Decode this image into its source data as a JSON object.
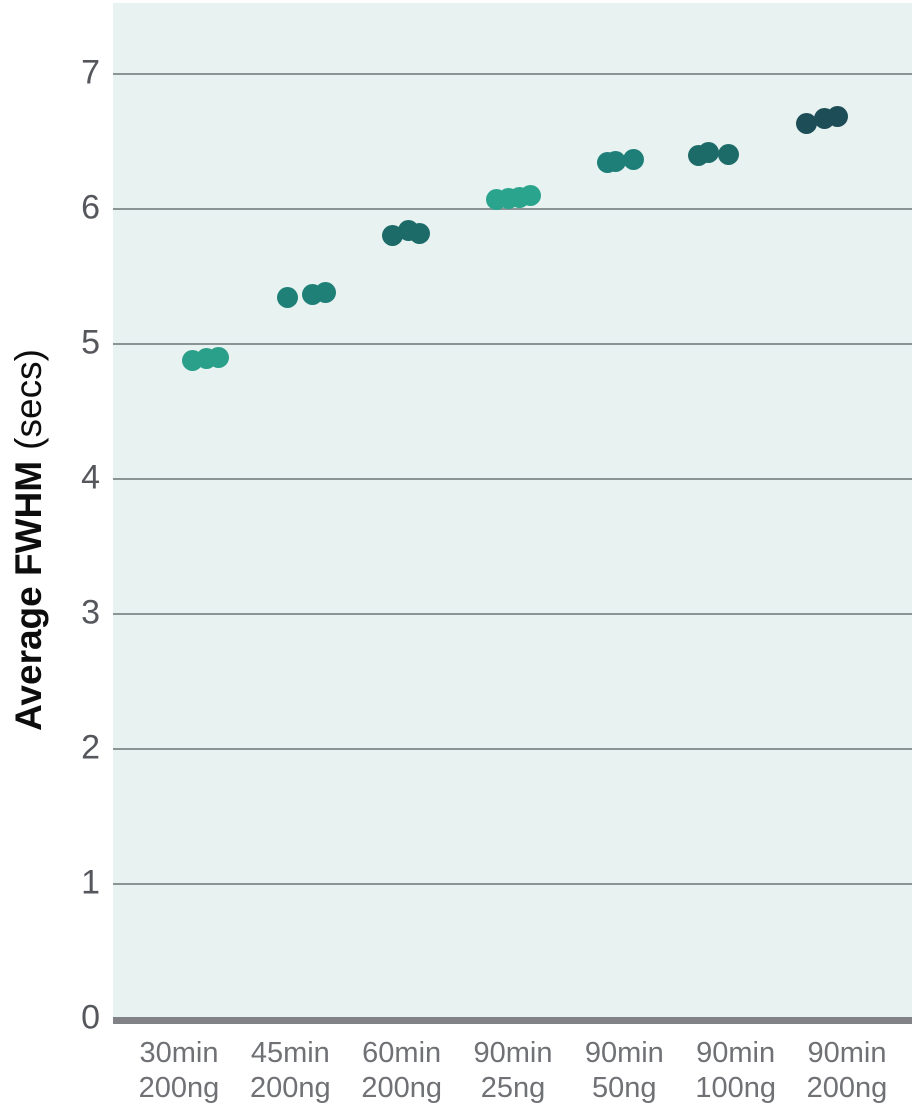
{
  "chart_data": {
    "type": "scatter",
    "subtype": "strip-plot",
    "title": "",
    "ylabel": "Average FWHM (secs)",
    "ylabel_bold": "Average FWHM",
    "ylabel_unit": "(secs)",
    "ylim": [
      0,
      7.52
    ],
    "yticks": [
      0,
      1,
      2,
      3,
      4,
      5,
      6,
      7
    ],
    "grid": "horizontal",
    "legend": "none",
    "categories": [
      {
        "line1": "30min",
        "line2": "200ng"
      },
      {
        "line1": "45min",
        "line2": "200ng"
      },
      {
        "line1": "60min",
        "line2": "200ng"
      },
      {
        "line1": "90min",
        "line2": "25ng"
      },
      {
        "line1": "90min",
        "line2": "50ng"
      },
      {
        "line1": "90min",
        "line2": "100ng"
      },
      {
        "line1": "90min",
        "line2": "200ng"
      }
    ],
    "series": [
      {
        "name": "30min 200ng",
        "color": "#2a9f8a",
        "points": [
          {
            "y": 4.87,
            "dx": 13
          },
          {
            "y": 4.885,
            "dx": 27
          },
          {
            "y": 4.89,
            "dx": 39
          }
        ]
      },
      {
        "name": "45min 200ng",
        "color": "#1f8078",
        "points": [
          {
            "y": 5.34,
            "dx": -3
          },
          {
            "y": 5.36,
            "dx": 22
          },
          {
            "y": 5.375,
            "dx": 35
          }
        ]
      },
      {
        "name": "60min 200ng",
        "color": "#1c6b68",
        "points": [
          {
            "y": 5.795,
            "dx": -9
          },
          {
            "y": 5.835,
            "dx": 7
          },
          {
            "y": 5.81,
            "dx": 18
          }
        ]
      },
      {
        "name": "90min 25ng",
        "color": "#2aa48c",
        "points": [
          {
            "y": 6.065,
            "dx": -16
          },
          {
            "y": 6.07,
            "dx": -4
          },
          {
            "y": 6.08,
            "dx": 7
          },
          {
            "y": 6.095,
            "dx": 18
          }
        ]
      },
      {
        "name": "90min 50ng",
        "color": "#1e7f79",
        "points": [
          {
            "y": 6.335,
            "dx": -17
          },
          {
            "y": 6.345,
            "dx": -9
          },
          {
            "y": 6.36,
            "dx": 9
          }
        ]
      },
      {
        "name": "90min 100ng",
        "color": "#1d6b68",
        "points": [
          {
            "y": 6.39,
            "dx": -37
          },
          {
            "y": 6.41,
            "dx": -27
          },
          {
            "y": 6.395,
            "dx": -7
          }
        ]
      },
      {
        "name": "90min 200ng",
        "color": "#1d4e57",
        "points": [
          {
            "y": 6.625,
            "dx": -40
          },
          {
            "y": 6.665,
            "dx": -22
          },
          {
            "y": 6.675,
            "dx": -9
          }
        ]
      }
    ],
    "colors": {
      "plot_bg": "#e8f3f1",
      "gridline": "#8a9495",
      "axis_line": "#808285",
      "y_tick_text": "#55575c",
      "x_label_text": "#6f7175",
      "y_title_text": "#0d0d0d"
    }
  }
}
